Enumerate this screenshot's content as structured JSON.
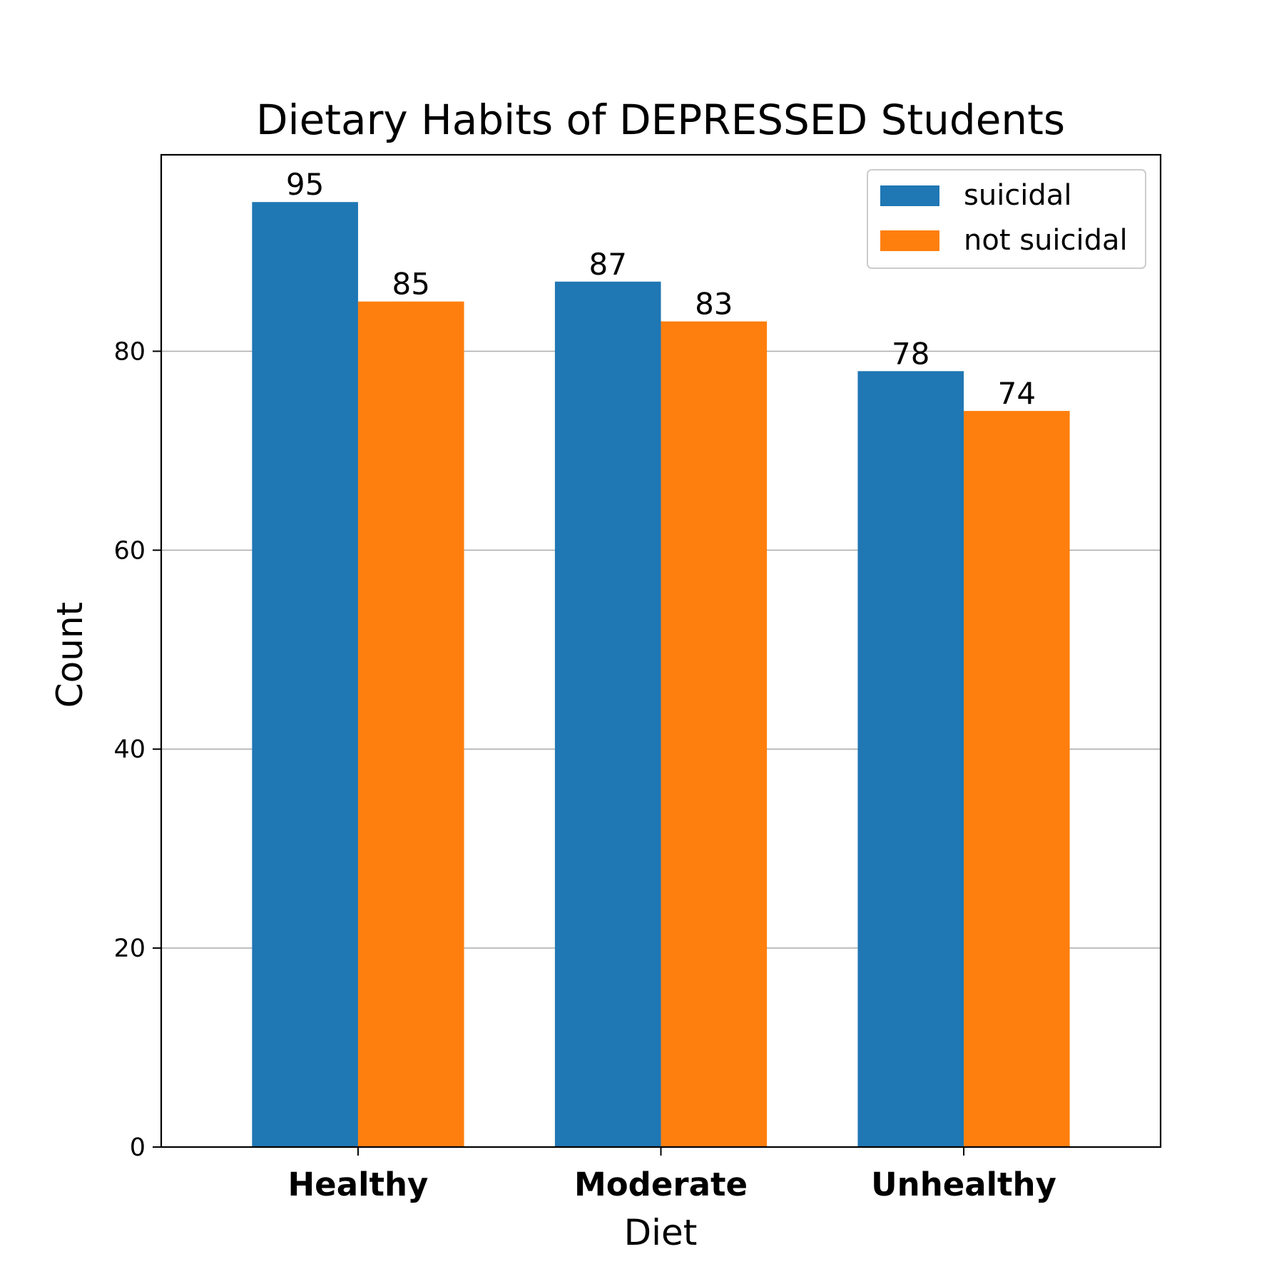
{
  "chart_data": {
    "type": "bar",
    "title": "Dietary Habits of DEPRESSED Students",
    "xlabel": "Diet",
    "ylabel": "Count",
    "categories": [
      "Healthy",
      "Moderate",
      "Unhealthy"
    ],
    "series": [
      {
        "name": "suicidal",
        "values": [
          95,
          87,
          78
        ],
        "color": "#1f77b4"
      },
      {
        "name": "not suicidal",
        "values": [
          85,
          83,
          74
        ],
        "color": "#ff7f0e"
      }
    ],
    "ylim": [
      0,
      99.75
    ],
    "yticks": [
      0,
      20,
      40,
      60,
      80
    ],
    "grid": "y",
    "legend": "top-right",
    "value_labels": true
  }
}
